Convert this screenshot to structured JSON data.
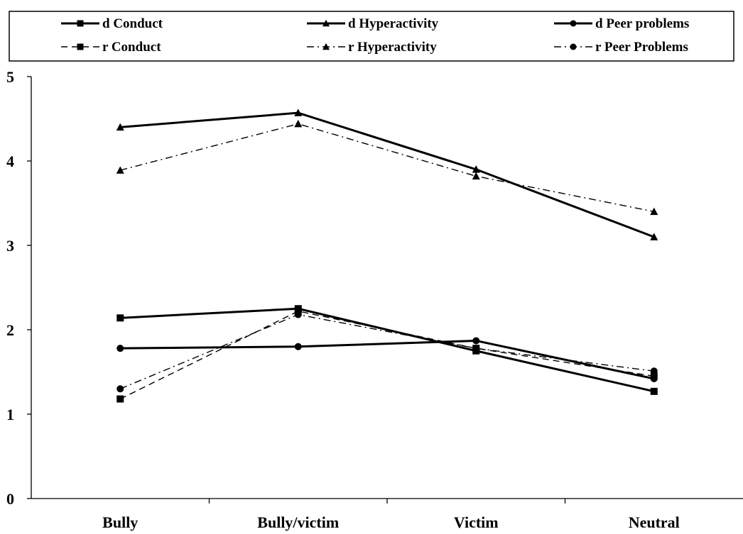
{
  "chart_data": {
    "type": "line",
    "categories": [
      "Bully",
      "Bully/victim",
      "Victim",
      "Neutral"
    ],
    "ylim": [
      0,
      5
    ],
    "yticks": [
      0,
      1,
      2,
      3,
      4,
      5
    ],
    "grid": false,
    "legend_position": "top",
    "series": [
      {
        "name": "d Conduct",
        "values": [
          2.14,
          2.25,
          1.75,
          1.27
        ],
        "marker": "square",
        "style": "solid"
      },
      {
        "name": "d Hyperactivity",
        "values": [
          4.4,
          4.57,
          3.9,
          3.1
        ],
        "marker": "triangle",
        "style": "solid"
      },
      {
        "name": "d Peer problems",
        "values": [
          1.78,
          1.8,
          1.87,
          1.42
        ],
        "marker": "circle",
        "style": "solid"
      },
      {
        "name": "r Conduct",
        "values": [
          1.18,
          2.22,
          1.78,
          1.45
        ],
        "marker": "square",
        "style": "dashed"
      },
      {
        "name": "r Hyperactivity",
        "values": [
          3.89,
          4.44,
          3.82,
          3.4
        ],
        "marker": "triangle",
        "style": "dashdot"
      },
      {
        "name": "r Peer Problems",
        "values": [
          1.3,
          2.18,
          1.78,
          1.51
        ],
        "marker": "circle",
        "style": "dashdot"
      }
    ]
  }
}
